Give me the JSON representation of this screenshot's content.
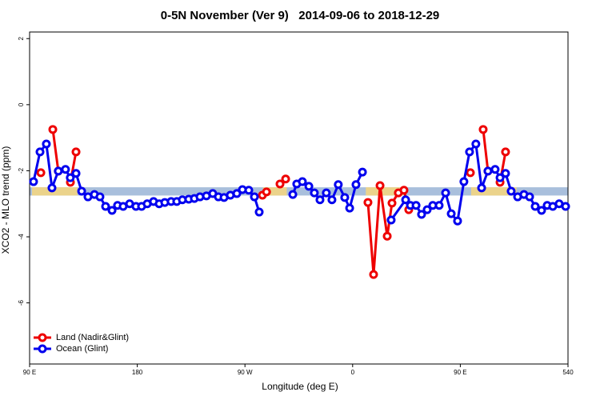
{
  "chart_data": {
    "type": "line",
    "title": "0-5N November (Ver 9)   2014-09-06 to 2018-12-29",
    "x_label": "Longitude (deg E)",
    "y_label": "XCO2 - MLO trend (ppm)",
    "xlim": [
      90,
      540
    ],
    "ylim": [
      -7.85,
      2.2
    ],
    "xticks": [
      {
        "value": 90,
        "label": "90 E"
      },
      180,
      {
        "value": 270,
        "label": "90 W"
      },
      {
        "value": 360,
        "label": "0"
      },
      {
        "value": 450,
        "label": "90 E"
      },
      540
    ],
    "yticks": [
      2,
      0,
      -2,
      -4,
      -6
    ],
    "band": {
      "range": [
        -2.75,
        -2.5
      ],
      "color": "#a9bfdc"
    },
    "band_highlights": {
      "color": "#f7d67c",
      "ranges": [
        [
          92,
          130
        ],
        [
          285,
          305
        ],
        [
          371,
          405
        ],
        [
          459,
          497
        ]
      ]
    },
    "legend": "bottom-left",
    "series": [
      {
        "name": "Land (Nadir&Glint)",
        "color": "#ee0000",
        "x": [
          99.4,
          null,
          109.4,
          114,
          null,
          124.1,
          128.8,
          null,
          284.6,
          288,
          null,
          299.3,
          304,
          null,
          372.8,
          377.5,
          382.9,
          388.9,
          392.9,
          398.2,
          402.9,
          406.9,
          null,
          458.4,
          null,
          469.1,
          473.1,
          null,
          483.2,
          487.8
        ],
        "values": [
          -2.06,
          null,
          -0.75,
          -2.01,
          null,
          -2.35,
          -1.43,
          null,
          -2.74,
          -2.64,
          null,
          -2.4,
          -2.25,
          null,
          -2.96,
          -5.14,
          -2.45,
          -3.98,
          -2.98,
          -2.67,
          -2.59,
          -3.18,
          null,
          -2.06,
          null,
          -0.75,
          -2.01,
          null,
          -2.35,
          -1.43
        ]
      },
      {
        "name": "Ocean (Glint)",
        "color": "#0000ee",
        "x": [
          93.3,
          98.7,
          104,
          108.7,
          114,
          120,
          124,
          128.8,
          133.5,
          138.8,
          144.2,
          148.8,
          153.5,
          158.9,
          163.5,
          168.2,
          173.6,
          178.9,
          183.6,
          188.3,
          193.6,
          198.3,
          203,
          208.3,
          213,
          217.7,
          223,
          227.7,
          232.4,
          237.8,
          243.1,
          247.8,
          252.5,
          257.8,
          263.2,
          267.9,
          273.2,
          277.9,
          281.9,
          null,
          310,
          313.3,
          318,
          323.4,
          328,
          332.7,
          338,
          342.7,
          348,
          353.4,
          357.5,
          362.8,
          368.2,
          null,
          392.2,
          404.3,
          408.3,
          413,
          417.6,
          422.3,
          427,
          432.3,
          437.7,
          442.4,
          447.7,
          453,
          457.7,
          463,
          467.8,
          473.1,
          479.1,
          483.2,
          487.8,
          492.5,
          497.9,
          503.2,
          507.9,
          512.6,
          517.9,
          522.6,
          527.3,
          532.6,
          538
        ],
        "values": [
          -2.33,
          -1.43,
          -1.19,
          -2.52,
          -2.01,
          -1.96,
          -2.21,
          -2.08,
          -2.62,
          -2.79,
          -2.72,
          -2.79,
          -3.08,
          -3.2,
          -3.05,
          -3.08,
          -3.0,
          -3.08,
          -3.08,
          -3.0,
          -2.93,
          -3.0,
          -2.96,
          -2.93,
          -2.93,
          -2.88,
          -2.86,
          -2.84,
          -2.79,
          -2.76,
          -2.69,
          -2.79,
          -2.81,
          -2.74,
          -2.69,
          -2.57,
          -2.59,
          -2.79,
          -3.25,
          null,
          -2.72,
          -2.4,
          -2.33,
          -2.47,
          -2.67,
          -2.88,
          -2.67,
          -2.88,
          -2.42,
          -2.81,
          -3.13,
          -2.42,
          -2.04,
          null,
          -3.49,
          -2.88,
          -3.05,
          -3.05,
          -3.32,
          -3.18,
          -3.05,
          -3.05,
          -2.67,
          -3.3,
          -3.52,
          -2.33,
          -1.43,
          -1.19,
          -2.52,
          -2.01,
          -1.96,
          -2.21,
          -2.08,
          -2.62,
          -2.79,
          -2.72,
          -2.79,
          -3.08,
          -3.2,
          -3.05,
          -3.08,
          -3.0,
          -3.08
        ]
      }
    ]
  }
}
